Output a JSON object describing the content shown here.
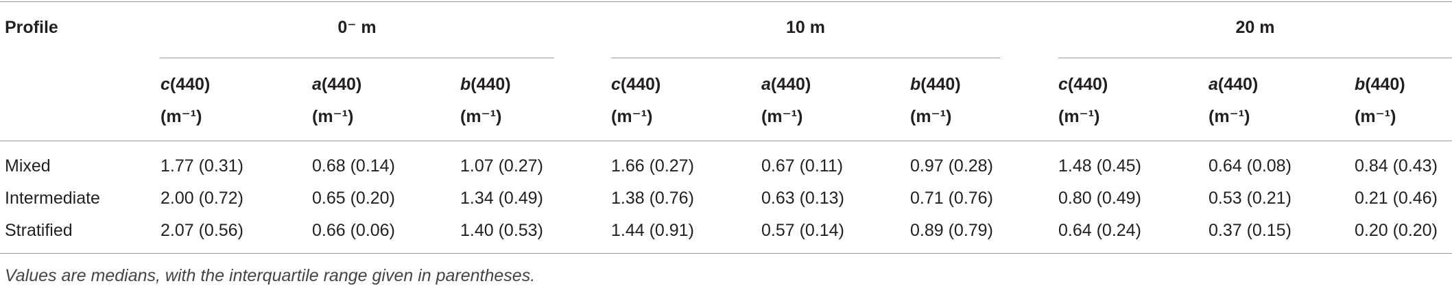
{
  "table": {
    "header": {
      "profile": "Profile",
      "groups": [
        {
          "label": "0⁻ m",
          "columns": [
            {
              "symbol": "c",
              "rest": "(440)",
              "unit": "(m⁻¹)"
            },
            {
              "symbol": "a",
              "rest": "(440)",
              "unit": "(m⁻¹)"
            },
            {
              "symbol": "b",
              "rest": "(440)",
              "unit": "(m⁻¹)"
            }
          ]
        },
        {
          "label": "10 m",
          "columns": [
            {
              "symbol": "c",
              "rest": "(440)",
              "unit": "(m⁻¹)"
            },
            {
              "symbol": "a",
              "rest": "(440)",
              "unit": "(m⁻¹)"
            },
            {
              "symbol": "b",
              "rest": "(440)",
              "unit": "(m⁻¹)"
            }
          ]
        },
        {
          "label": "20 m",
          "columns": [
            {
              "symbol": "c",
              "rest": "(440)",
              "unit": "(m⁻¹)"
            },
            {
              "symbol": "a",
              "rest": "(440)",
              "unit": "(m⁻¹)"
            },
            {
              "symbol": "b",
              "rest": "(440)",
              "unit": "(m⁻¹)"
            }
          ]
        }
      ]
    },
    "rows": [
      [
        "Mixed",
        "1.77 (0.31)",
        "0.68 (0.14)",
        "1.07 (0.27)",
        "1.66 (0.27)",
        "0.67 (0.11)",
        "0.97 (0.28)",
        "1.48 (0.45)",
        "0.64 (0.08)",
        "0.84 (0.43)"
      ],
      [
        "Intermediate",
        "2.00 (0.72)",
        "0.65 (0.20)",
        "1.34 (0.49)",
        "1.38 (0.76)",
        "0.63 (0.13)",
        "0.71 (0.76)",
        "0.80 (0.49)",
        "0.53 (0.21)",
        "0.21 (0.46)"
      ],
      [
        "Stratified",
        "2.07 (0.56)",
        "0.66 (0.06)",
        "1.40 (0.53)",
        "1.44 (0.91)",
        "0.57 (0.14)",
        "0.89 (0.79)",
        "0.64 (0.24)",
        "0.37 (0.15)",
        "0.20 (0.20)"
      ]
    ],
    "footnote": "Values are medians, with the interquartile range given in parentheses."
  }
}
